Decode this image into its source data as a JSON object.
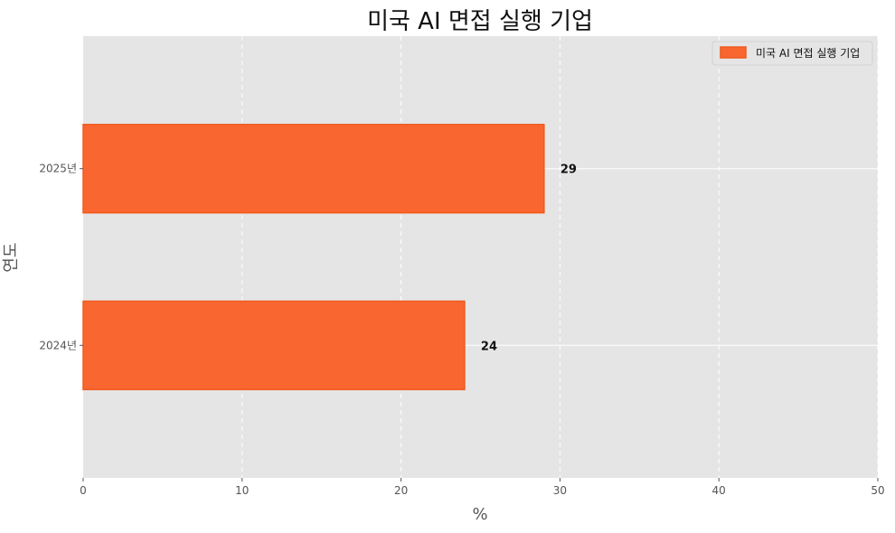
{
  "chart_data": {
    "type": "bar",
    "orientation": "horizontal",
    "title": "미국 AI 면접 실행 기업",
    "xlabel": "%",
    "ylabel": "연도",
    "categories": [
      "2024년",
      "2025년"
    ],
    "series": [
      {
        "name": "미국 AI 면접 실행 기업",
        "values": [
          24,
          29
        ],
        "color": "#f96630"
      }
    ],
    "xlim": [
      0,
      50
    ],
    "xticks": [
      0,
      10,
      20,
      30,
      40,
      50
    ],
    "grid": true,
    "legend_position": "top-right",
    "colors": {
      "background": "#e5e5e5",
      "grid": "#ffffff",
      "bar": "#f96630",
      "bar_edge": "#f05a1e"
    }
  }
}
